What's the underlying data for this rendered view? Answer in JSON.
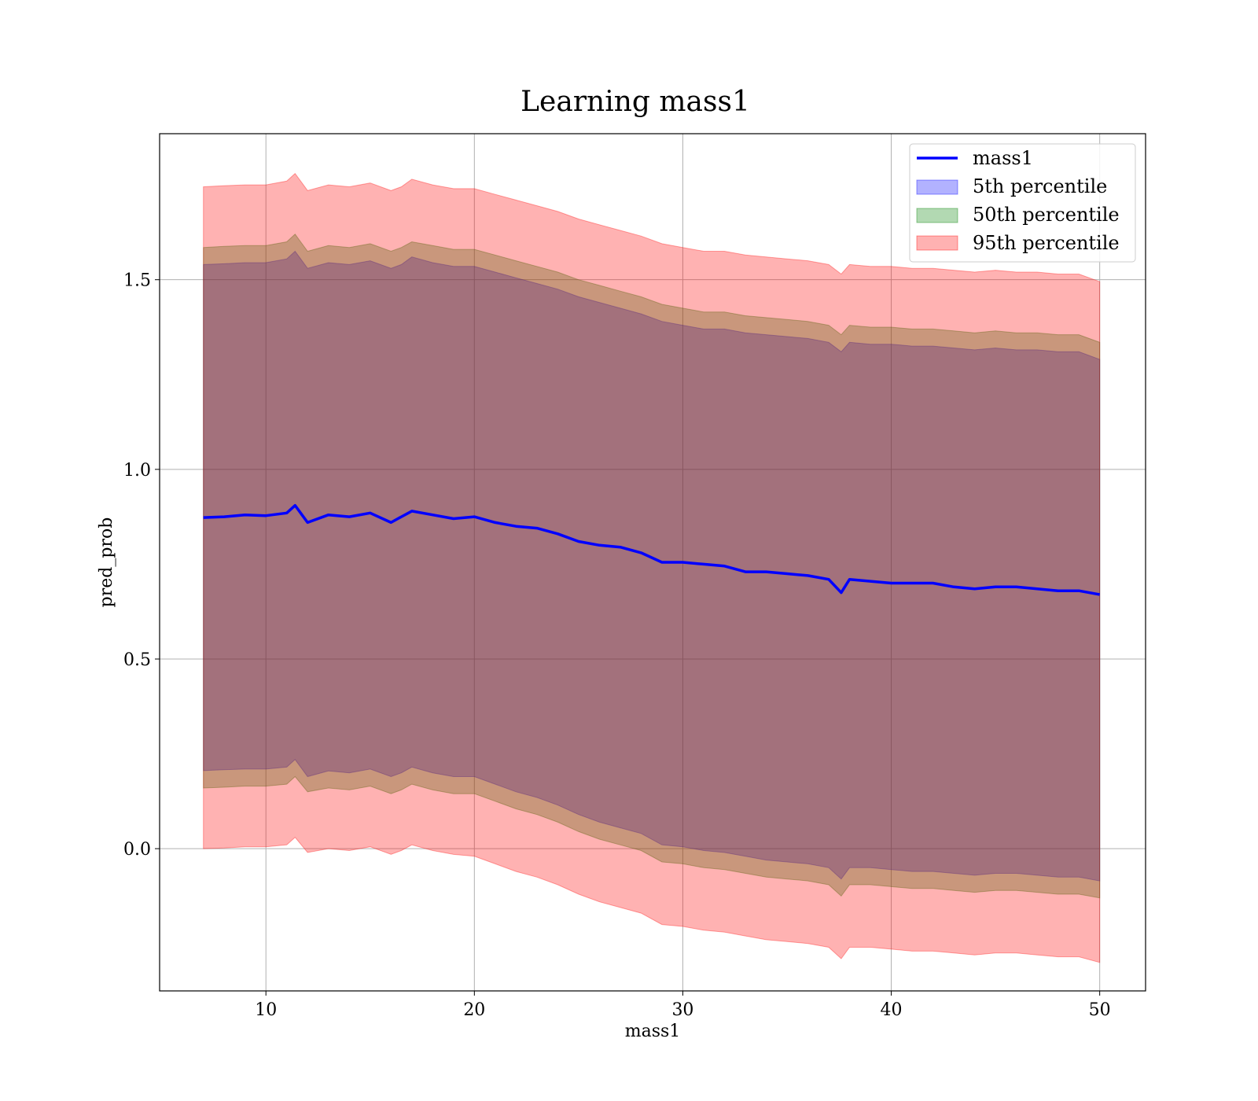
{
  "chart_data": {
    "type": "area",
    "title": "Learning mass1",
    "xlabel": "mass1",
    "ylabel": "pred_prob",
    "xlim": [
      4.9,
      52.2
    ],
    "ylim": [
      -0.375,
      1.885
    ],
    "xticks": [
      10,
      20,
      30,
      40,
      50
    ],
    "xtick_labels": [
      "10",
      "20",
      "30",
      "40",
      "50"
    ],
    "yticks": [
      0.0,
      0.5,
      1.0,
      1.5
    ],
    "ytick_labels": [
      "0.0",
      "0.5",
      "1.0",
      "1.5"
    ],
    "grid": true,
    "legend_position": "top-right",
    "colors": {
      "line": "#0000ff",
      "band5": "#0000ff",
      "band50": "#008000",
      "band95": "#ff0000"
    },
    "x": [
      7,
      8,
      9,
      10,
      11,
      11.4,
      12,
      13,
      14,
      15,
      16,
      16.5,
      17,
      18,
      19,
      20,
      21,
      22,
      23,
      24,
      25,
      26,
      27,
      28,
      29,
      30,
      31,
      32,
      33,
      34,
      35,
      36,
      37,
      37.6,
      38,
      39,
      40,
      41,
      42,
      43,
      44,
      45,
      46,
      47,
      48,
      49,
      50
    ],
    "series": [
      {
        "name": "mass1",
        "kind": "line",
        "values": [
          0.873,
          0.875,
          0.88,
          0.878,
          0.885,
          0.905,
          0.86,
          0.88,
          0.875,
          0.885,
          0.86,
          0.875,
          0.89,
          0.88,
          0.87,
          0.875,
          0.86,
          0.85,
          0.845,
          0.83,
          0.81,
          0.8,
          0.795,
          0.78,
          0.755,
          0.755,
          0.75,
          0.745,
          0.73,
          0.73,
          0.725,
          0.72,
          0.71,
          0.675,
          0.71,
          0.705,
          0.7,
          0.7,
          0.7,
          0.69,
          0.685,
          0.69,
          0.69,
          0.685,
          0.68,
          0.68,
          0.67
        ]
      },
      {
        "name": "5th percentile",
        "kind": "band",
        "lower": [
          0.206,
          0.208,
          0.21,
          0.21,
          0.215,
          0.235,
          0.19,
          0.205,
          0.2,
          0.21,
          0.19,
          0.2,
          0.215,
          0.2,
          0.19,
          0.19,
          0.17,
          0.15,
          0.135,
          0.115,
          0.09,
          0.07,
          0.055,
          0.04,
          0.01,
          0.005,
          -0.005,
          -0.01,
          -0.02,
          -0.03,
          -0.035,
          -0.04,
          -0.05,
          -0.08,
          -0.05,
          -0.05,
          -0.055,
          -0.06,
          -0.06,
          -0.065,
          -0.07,
          -0.065,
          -0.065,
          -0.07,
          -0.075,
          -0.075,
          -0.085
        ],
        "upper": [
          1.54,
          1.542,
          1.545,
          1.545,
          1.555,
          1.575,
          1.53,
          1.545,
          1.54,
          1.55,
          1.53,
          1.54,
          1.56,
          1.545,
          1.535,
          1.535,
          1.52,
          1.505,
          1.49,
          1.475,
          1.455,
          1.44,
          1.425,
          1.41,
          1.39,
          1.38,
          1.37,
          1.37,
          1.36,
          1.355,
          1.35,
          1.345,
          1.335,
          1.31,
          1.335,
          1.33,
          1.33,
          1.325,
          1.325,
          1.32,
          1.315,
          1.32,
          1.315,
          1.315,
          1.31,
          1.31,
          1.29
        ]
      },
      {
        "name": "50th percentile",
        "kind": "band",
        "lower": [
          0.16,
          0.162,
          0.165,
          0.165,
          0.17,
          0.19,
          0.15,
          0.16,
          0.155,
          0.165,
          0.145,
          0.155,
          0.17,
          0.155,
          0.145,
          0.145,
          0.125,
          0.105,
          0.09,
          0.07,
          0.045,
          0.025,
          0.01,
          -0.005,
          -0.035,
          -0.04,
          -0.05,
          -0.055,
          -0.065,
          -0.075,
          -0.08,
          -0.085,
          -0.095,
          -0.125,
          -0.095,
          -0.095,
          -0.1,
          -0.105,
          -0.105,
          -0.11,
          -0.115,
          -0.11,
          -0.11,
          -0.115,
          -0.12,
          -0.12,
          -0.13
        ],
        "upper": [
          1.585,
          1.588,
          1.59,
          1.59,
          1.6,
          1.62,
          1.575,
          1.59,
          1.585,
          1.595,
          1.575,
          1.585,
          1.6,
          1.59,
          1.58,
          1.58,
          1.565,
          1.55,
          1.535,
          1.52,
          1.5,
          1.485,
          1.47,
          1.455,
          1.435,
          1.425,
          1.415,
          1.415,
          1.405,
          1.4,
          1.395,
          1.39,
          1.38,
          1.355,
          1.38,
          1.375,
          1.375,
          1.37,
          1.37,
          1.365,
          1.36,
          1.365,
          1.36,
          1.36,
          1.355,
          1.355,
          1.335
        ]
      },
      {
        "name": "95th percentile",
        "kind": "band",
        "lower": [
          0.0,
          0.002,
          0.005,
          0.005,
          0.01,
          0.03,
          -0.01,
          0.0,
          -0.005,
          0.005,
          -0.015,
          -0.005,
          0.01,
          -0.005,
          -0.015,
          -0.02,
          -0.04,
          -0.06,
          -0.075,
          -0.095,
          -0.12,
          -0.14,
          -0.155,
          -0.17,
          -0.2,
          -0.205,
          -0.215,
          -0.22,
          -0.23,
          -0.24,
          -0.245,
          -0.25,
          -0.26,
          -0.29,
          -0.26,
          -0.26,
          -0.265,
          -0.27,
          -0.27,
          -0.275,
          -0.28,
          -0.275,
          -0.275,
          -0.28,
          -0.285,
          -0.285,
          -0.3
        ],
        "upper": [
          1.745,
          1.748,
          1.75,
          1.75,
          1.76,
          1.78,
          1.735,
          1.75,
          1.745,
          1.755,
          1.735,
          1.745,
          1.765,
          1.75,
          1.74,
          1.74,
          1.725,
          1.71,
          1.695,
          1.68,
          1.66,
          1.645,
          1.63,
          1.615,
          1.595,
          1.585,
          1.575,
          1.575,
          1.565,
          1.56,
          1.555,
          1.55,
          1.54,
          1.515,
          1.54,
          1.535,
          1.535,
          1.53,
          1.53,
          1.525,
          1.52,
          1.525,
          1.52,
          1.52,
          1.515,
          1.515,
          1.495
        ]
      }
    ]
  }
}
